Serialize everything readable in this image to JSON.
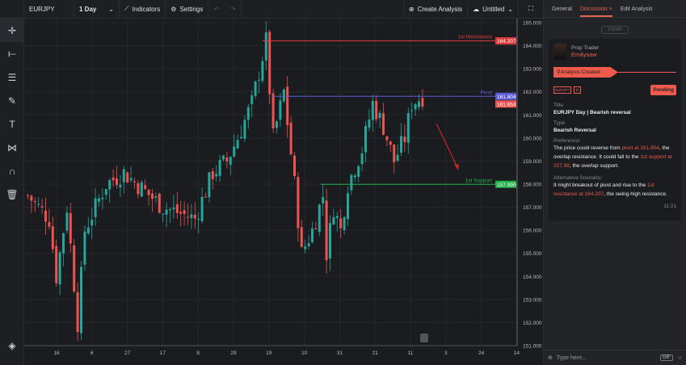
{
  "toolbar": {
    "symbol": "EURJPY",
    "interval": "1 Day",
    "indicators": "Indicators",
    "settings": "Settings",
    "create_analysis": "Create Analysis",
    "layout_name": "Untitled"
  },
  "panel": {
    "tabs": [
      "General",
      "Discussion",
      "Edit Analysis"
    ],
    "close_tab": "×",
    "day_divider": "TODAY",
    "author_role": "Prop Trader",
    "author_name": "Emilysaw",
    "event": "Analysis Created",
    "tags": [
      "EURJPY",
      "D"
    ],
    "status": "Pending",
    "title_label": "Title",
    "title": "EURJPY Day | Bearish reversal",
    "type_label": "Type",
    "type": "Bearish Reversal",
    "preference_label": "Preference:",
    "pref_1": "The price could reverse from ",
    "pref_hl1": "pivot at 161.804",
    "pref_2": ", the overlap resistance. It could fall to the ",
    "pref_hl2": "1st support at 157.99",
    "pref_3": ", the overlap support.",
    "alt_label": "Alternative Scenario:",
    "alt_1": "It might breakout of pivot and rise to the ",
    "alt_hl1": "1st resistance at 164.207",
    "alt_2": ", the swing-high resistance.",
    "time": "11:21",
    "input_placeholder": "Type here...",
    "gif": "GIF"
  },
  "colors": {
    "accent": "#ef5a4c",
    "up": "#26a69a",
    "down": "#ef5350",
    "resistance": "#e03c3c",
    "pivot": "#5b5bd6",
    "support": "#22b24c"
  },
  "chart_data": {
    "type": "candlestick",
    "symbol": "EURJPY",
    "ylim": [
      151,
      165
    ],
    "y_ticks": [
      "165.000",
      "164.000",
      "163.000",
      "162.000",
      "161.000",
      "160.000",
      "159.000",
      "158.000",
      "157.000",
      "156.000",
      "155.000",
      "154.000",
      "153.000",
      "152.000",
      "151.000"
    ],
    "x_ticks": [
      "16",
      "6",
      "27",
      "17",
      "8",
      "29",
      "19",
      "10",
      "31",
      "21",
      "11",
      "3",
      "24",
      "14"
    ],
    "levels": [
      {
        "name": "1st Resistance",
        "value": 164.207,
        "label": "164.207"
      },
      {
        "name": "Pivot",
        "value": 161.804,
        "label": "161.804"
      },
      {
        "name": "1st Support",
        "value": 157.99,
        "label": "157.990"
      }
    ],
    "last_price": "161.654",
    "price_path": [
      [
        0,
        157.5
      ],
      [
        6,
        156.5
      ],
      [
        8,
        154
      ],
      [
        11,
        157
      ],
      [
        14,
        152
      ],
      [
        16,
        156
      ],
      [
        22,
        158
      ],
      [
        27,
        158.5
      ],
      [
        38,
        157
      ],
      [
        47,
        156.5
      ],
      [
        52,
        158.5
      ],
      [
        56,
        159
      ],
      [
        59,
        160
      ],
      [
        63,
        161.5
      ],
      [
        67,
        164.2
      ],
      [
        69,
        160
      ],
      [
        72,
        162
      ],
      [
        75,
        158
      ],
      [
        77,
        155
      ],
      [
        80,
        156
      ],
      [
        83,
        157.5
      ],
      [
        84,
        155
      ],
      [
        86,
        157
      ],
      [
        88,
        156
      ],
      [
        90,
        158
      ],
      [
        94,
        159.5
      ],
      [
        97,
        161.5
      ],
      [
        100,
        160.5
      ],
      [
        103,
        159
      ],
      [
        106,
        160
      ],
      [
        108,
        161.5
      ],
      [
        111,
        161.8
      ]
    ]
  }
}
